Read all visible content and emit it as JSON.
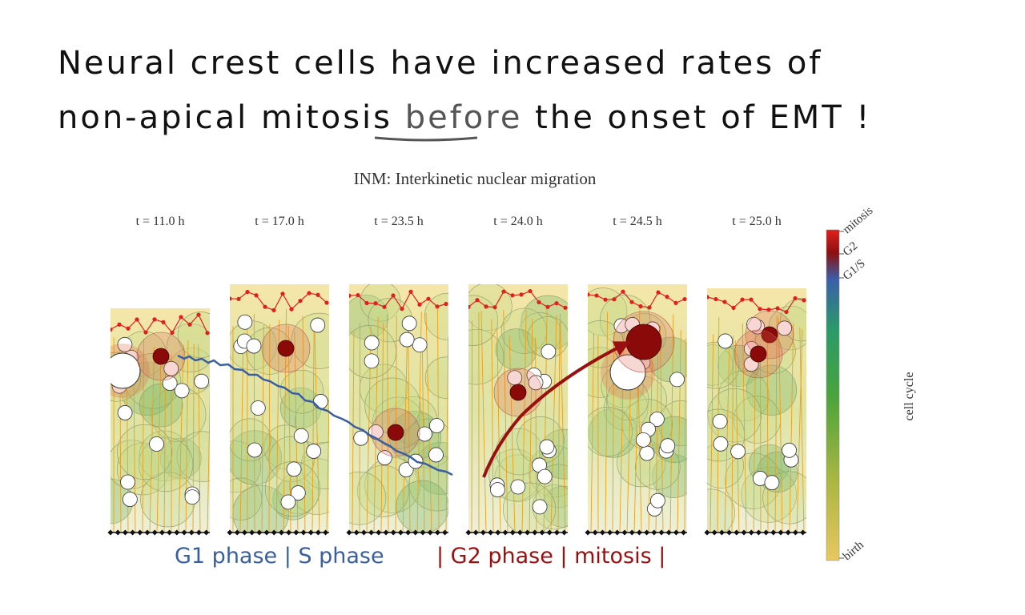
{
  "header": {
    "line1": "Neural crest cells have increased rates of",
    "line2_start": "non-apical mitosis",
    "line2_emphasis": "before",
    "line2_end": "the onset of EMT !"
  },
  "figure": {
    "title": "INM: Interkinetic nuclear migration",
    "panels": [
      "t = 11.0 h",
      "t = 17.0 h",
      "t = 23.5 h",
      "t = 24.0 h",
      "t = 24.5 h",
      "t = 25.0 h"
    ],
    "colorbar": {
      "label": "cell cycle",
      "ticks": [
        "mitosis",
        "G2",
        "G1/S",
        "birth"
      ]
    }
  },
  "annotation": {
    "blue": "G1 phase | S phase",
    "red": "| G2 phase | mitosis |"
  }
}
